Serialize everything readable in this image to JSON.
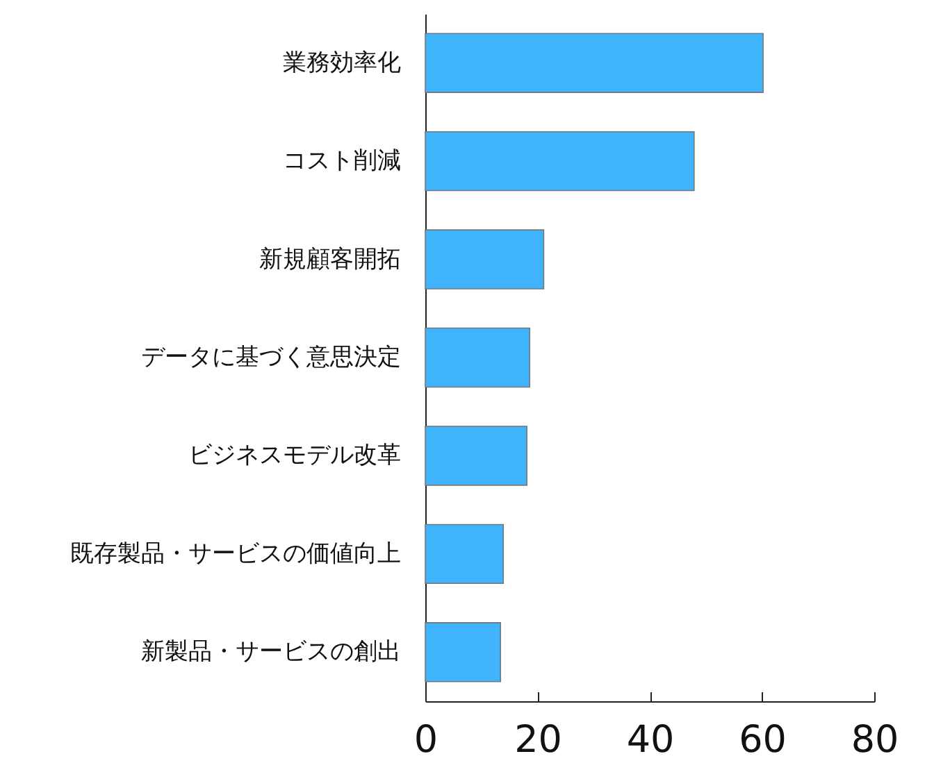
{
  "chart_data": {
    "type": "bar",
    "orientation": "horizontal",
    "categories": [
      "業務効率化",
      "コスト削減",
      "新規顧客開拓",
      "データに基づく意思決定",
      "ビジネスモデル改革",
      "既存製品・サービスの価値向上",
      "新製品・サービスの創出"
    ],
    "values": [
      60.2,
      47.9,
      21.1,
      18.6,
      18.1,
      13.9,
      13.4
    ],
    "color": "#3fb4fc",
    "xlim": [
      0,
      80
    ],
    "xticks": [
      0,
      20,
      40,
      60,
      80
    ],
    "grid": false
  }
}
